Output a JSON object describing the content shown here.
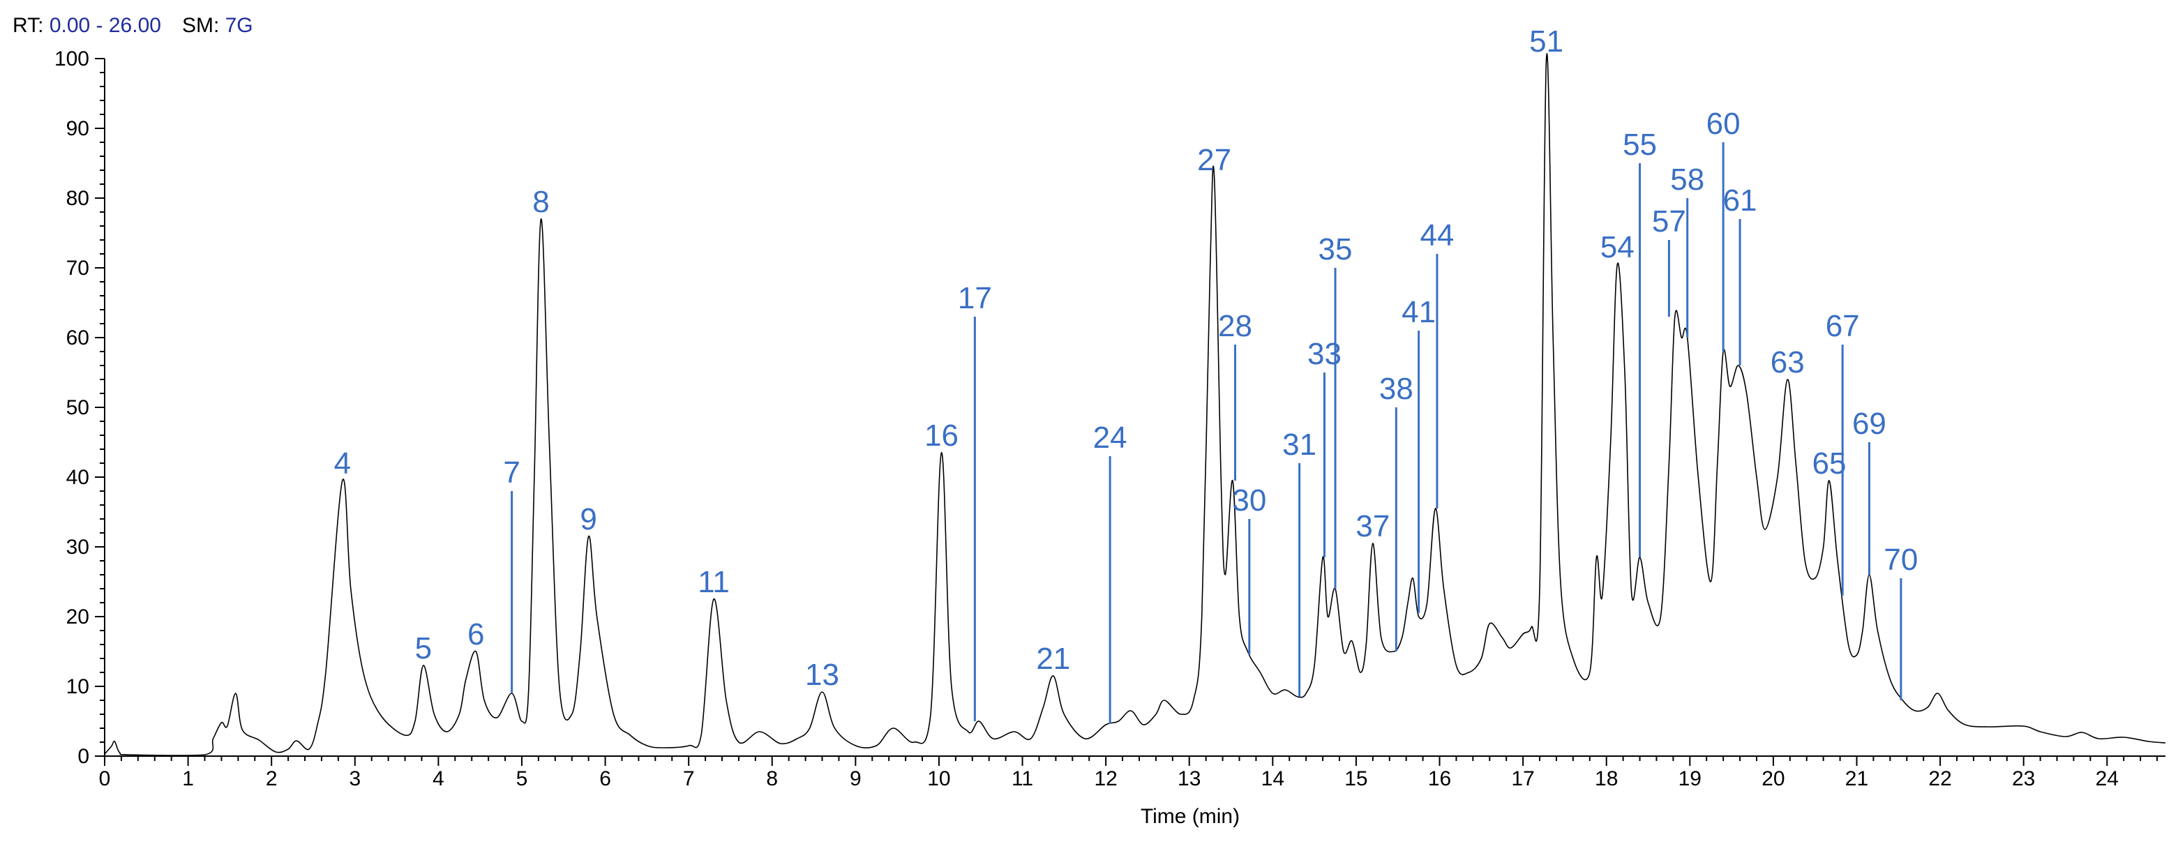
{
  "header": {
    "rt_label": "RT:",
    "rt_value": "0.00 - 26.00",
    "sm_label": "SM:",
    "sm_value": "7G"
  },
  "colors": {
    "trace": "#000000",
    "annotation": "#3a6fc4",
    "header_value": "#1f2d9c"
  },
  "chart_data": {
    "type": "line",
    "title": "",
    "xlabel": "Time (min)",
    "ylabel": "",
    "xlim": [
      0,
      24.7
    ],
    "ylim": [
      0,
      100
    ],
    "x_ticks": [
      0,
      1,
      2,
      3,
      4,
      5,
      6,
      7,
      8,
      9,
      10,
      11,
      12,
      13,
      14,
      15,
      16,
      17,
      18,
      19,
      20,
      21,
      22,
      23,
      24
    ],
    "y_ticks": [
      0,
      10,
      20,
      30,
      40,
      50,
      60,
      70,
      80,
      90,
      100
    ],
    "grid": false,
    "legend": "none",
    "baseline": [
      {
        "x": 0,
        "y": 0.3
      },
      {
        "x": 0.08,
        "y": 1.4
      },
      {
        "x": 0.12,
        "y": 2.1
      },
      {
        "x": 0.18,
        "y": 0.5
      },
      {
        "x": 0.3,
        "y": 0.2
      },
      {
        "x": 1.2,
        "y": 0.2
      },
      {
        "x": 1.3,
        "y": 2.5
      },
      {
        "x": 1.4,
        "y": 4.8
      },
      {
        "x": 1.47,
        "y": 4.3
      },
      {
        "x": 1.57,
        "y": 9.0
      },
      {
        "x": 1.65,
        "y": 3.8
      },
      {
        "x": 1.85,
        "y": 2.3
      },
      {
        "x": 2.05,
        "y": 0.6
      },
      {
        "x": 2.2,
        "y": 1.0
      },
      {
        "x": 2.3,
        "y": 2.2
      },
      {
        "x": 2.45,
        "y": 1.0
      },
      {
        "x": 2.55,
        "y": 4.5
      },
      {
        "x": 2.65,
        "y": 12
      },
      {
        "x": 2.85,
        "y": 39.5
      },
      {
        "x": 2.95,
        "y": 24
      },
      {
        "x": 3.1,
        "y": 12
      },
      {
        "x": 3.3,
        "y": 6
      },
      {
        "x": 3.6,
        "y": 3
      },
      {
        "x": 3.72,
        "y": 5
      },
      {
        "x": 3.82,
        "y": 13.0
      },
      {
        "x": 3.95,
        "y": 6
      },
      {
        "x": 4.1,
        "y": 3.5
      },
      {
        "x": 4.25,
        "y": 6
      },
      {
        "x": 4.33,
        "y": 11
      },
      {
        "x": 4.45,
        "y": 15.0
      },
      {
        "x": 4.55,
        "y": 8
      },
      {
        "x": 4.7,
        "y": 5.5
      },
      {
        "x": 4.88,
        "y": 9.0
      },
      {
        "x": 5.0,
        "y": 5
      },
      {
        "x": 5.08,
        "y": 9
      },
      {
        "x": 5.15,
        "y": 40
      },
      {
        "x": 5.23,
        "y": 77.0
      },
      {
        "x": 5.33,
        "y": 45
      },
      {
        "x": 5.45,
        "y": 10
      },
      {
        "x": 5.6,
        "y": 6
      },
      {
        "x": 5.7,
        "y": 15
      },
      {
        "x": 5.8,
        "y": 31.5
      },
      {
        "x": 5.9,
        "y": 20
      },
      {
        "x": 6.1,
        "y": 6
      },
      {
        "x": 6.3,
        "y": 3
      },
      {
        "x": 6.5,
        "y": 1.5
      },
      {
        "x": 6.7,
        "y": 1.2
      },
      {
        "x": 7.0,
        "y": 1.5
      },
      {
        "x": 7.15,
        "y": 3
      },
      {
        "x": 7.3,
        "y": 22.5
      },
      {
        "x": 7.45,
        "y": 8
      },
      {
        "x": 7.6,
        "y": 2
      },
      {
        "x": 7.85,
        "y": 3.5
      },
      {
        "x": 8.1,
        "y": 1.8
      },
      {
        "x": 8.3,
        "y": 2.5
      },
      {
        "x": 8.45,
        "y": 4
      },
      {
        "x": 8.6,
        "y": 9.2
      },
      {
        "x": 8.75,
        "y": 4
      },
      {
        "x": 9.0,
        "y": 1.5
      },
      {
        "x": 9.25,
        "y": 1.5
      },
      {
        "x": 9.45,
        "y": 4
      },
      {
        "x": 9.7,
        "y": 2
      },
      {
        "x": 9.9,
        "y": 6
      },
      {
        "x": 10.03,
        "y": 43.5
      },
      {
        "x": 10.15,
        "y": 10
      },
      {
        "x": 10.35,
        "y": 3.5
      },
      {
        "x": 10.48,
        "y": 5
      },
      {
        "x": 10.65,
        "y": 2.5
      },
      {
        "x": 10.9,
        "y": 3.5
      },
      {
        "x": 11.1,
        "y": 2.5
      },
      {
        "x": 11.25,
        "y": 7
      },
      {
        "x": 11.37,
        "y": 11.5
      },
      {
        "x": 11.5,
        "y": 6
      },
      {
        "x": 11.75,
        "y": 2.5
      },
      {
        "x": 12.0,
        "y": 4.5
      },
      {
        "x": 12.15,
        "y": 5
      },
      {
        "x": 12.3,
        "y": 6.5
      },
      {
        "x": 12.45,
        "y": 4.5
      },
      {
        "x": 12.6,
        "y": 6
      },
      {
        "x": 12.7,
        "y": 8
      },
      {
        "x": 12.9,
        "y": 6
      },
      {
        "x": 13.05,
        "y": 8
      },
      {
        "x": 13.15,
        "y": 20
      },
      {
        "x": 13.25,
        "y": 70
      },
      {
        "x": 13.3,
        "y": 83.0
      },
      {
        "x": 13.38,
        "y": 40
      },
      {
        "x": 13.43,
        "y": 26
      },
      {
        "x": 13.52,
        "y": 39.5
      },
      {
        "x": 13.6,
        "y": 20
      },
      {
        "x": 13.7,
        "y": 15
      },
      {
        "x": 13.85,
        "y": 12
      },
      {
        "x": 14.0,
        "y": 9
      },
      {
        "x": 14.15,
        "y": 9.5
      },
      {
        "x": 14.3,
        "y": 8.5
      },
      {
        "x": 14.4,
        "y": 9
      },
      {
        "x": 14.5,
        "y": 13
      },
      {
        "x": 14.6,
        "y": 28.5
      },
      {
        "x": 14.66,
        "y": 20
      },
      {
        "x": 14.75,
        "y": 24
      },
      {
        "x": 14.85,
        "y": 15
      },
      {
        "x": 14.95,
        "y": 16.5
      },
      {
        "x": 15.05,
        "y": 12
      },
      {
        "x": 15.12,
        "y": 16
      },
      {
        "x": 15.2,
        "y": 30.5
      },
      {
        "x": 15.3,
        "y": 17
      },
      {
        "x": 15.45,
        "y": 15
      },
      {
        "x": 15.55,
        "y": 17
      },
      {
        "x": 15.62,
        "y": 22
      },
      {
        "x": 15.68,
        "y": 25.5
      },
      {
        "x": 15.75,
        "y": 20
      },
      {
        "x": 15.85,
        "y": 22
      },
      {
        "x": 15.95,
        "y": 35.5
      },
      {
        "x": 16.05,
        "y": 24
      },
      {
        "x": 16.2,
        "y": 13
      },
      {
        "x": 16.35,
        "y": 12
      },
      {
        "x": 16.5,
        "y": 14
      },
      {
        "x": 16.6,
        "y": 19
      },
      {
        "x": 16.75,
        "y": 17
      },
      {
        "x": 16.85,
        "y": 15.5
      },
      {
        "x": 17.0,
        "y": 17.5
      },
      {
        "x": 17.1,
        "y": 18.5
      },
      {
        "x": 17.2,
        "y": 24
      },
      {
        "x": 17.28,
        "y": 100
      },
      {
        "x": 17.36,
        "y": 60
      },
      {
        "x": 17.45,
        "y": 25
      },
      {
        "x": 17.6,
        "y": 14
      },
      {
        "x": 17.8,
        "y": 12
      },
      {
        "x": 17.88,
        "y": 28.5
      },
      {
        "x": 17.95,
        "y": 23
      },
      {
        "x": 18.05,
        "y": 45
      },
      {
        "x": 18.13,
        "y": 70.5
      },
      {
        "x": 18.22,
        "y": 55
      },
      {
        "x": 18.3,
        "y": 23.5
      },
      {
        "x": 18.4,
        "y": 28.5
      },
      {
        "x": 18.5,
        "y": 22
      },
      {
        "x": 18.65,
        "y": 20
      },
      {
        "x": 18.75,
        "y": 42
      },
      {
        "x": 18.82,
        "y": 63
      },
      {
        "x": 18.9,
        "y": 60
      },
      {
        "x": 18.97,
        "y": 60
      },
      {
        "x": 19.1,
        "y": 40
      },
      {
        "x": 19.25,
        "y": 25
      },
      {
        "x": 19.33,
        "y": 42
      },
      {
        "x": 19.4,
        "y": 58
      },
      {
        "x": 19.48,
        "y": 53
      },
      {
        "x": 19.58,
        "y": 56
      },
      {
        "x": 19.68,
        "y": 52
      },
      {
        "x": 19.8,
        "y": 40
      },
      {
        "x": 19.9,
        "y": 32.5
      },
      {
        "x": 20.05,
        "y": 40
      },
      {
        "x": 20.17,
        "y": 54
      },
      {
        "x": 20.27,
        "y": 42
      },
      {
        "x": 20.38,
        "y": 28
      },
      {
        "x": 20.5,
        "y": 25.5
      },
      {
        "x": 20.6,
        "y": 30
      },
      {
        "x": 20.67,
        "y": 39.5
      },
      {
        "x": 20.77,
        "y": 28
      },
      {
        "x": 20.9,
        "y": 16
      },
      {
        "x": 21.0,
        "y": 14.5
      },
      {
        "x": 21.07,
        "y": 18
      },
      {
        "x": 21.15,
        "y": 26
      },
      {
        "x": 21.25,
        "y": 18
      },
      {
        "x": 21.4,
        "y": 11
      },
      {
        "x": 21.55,
        "y": 8
      },
      {
        "x": 21.7,
        "y": 6.5
      },
      {
        "x": 21.85,
        "y": 7
      },
      {
        "x": 21.97,
        "y": 9
      },
      {
        "x": 22.1,
        "y": 6.5
      },
      {
        "x": 22.3,
        "y": 4.5
      },
      {
        "x": 22.6,
        "y": 4.2
      },
      {
        "x": 23.0,
        "y": 4.3
      },
      {
        "x": 23.2,
        "y": 3.5
      },
      {
        "x": 23.5,
        "y": 2.8
      },
      {
        "x": 23.7,
        "y": 3.4
      },
      {
        "x": 23.9,
        "y": 2.5
      },
      {
        "x": 24.2,
        "y": 2.7
      },
      {
        "x": 24.5,
        "y": 2.1
      },
      {
        "x": 24.7,
        "y": 1.9
      }
    ],
    "annotations": [
      {
        "label": "4",
        "x": 2.85,
        "y": 39.5,
        "line": false
      },
      {
        "label": "5",
        "x": 3.82,
        "y": 13.0,
        "line": false
      },
      {
        "label": "6",
        "x": 4.45,
        "y": 15.0,
        "line": false
      },
      {
        "label": "7",
        "x": 4.88,
        "y": 9.0,
        "line": true,
        "top": 38
      },
      {
        "label": "8",
        "x": 5.23,
        "y": 77.0,
        "line": false
      },
      {
        "label": "9",
        "x": 5.8,
        "y": 31.5,
        "line": false
      },
      {
        "label": "11",
        "x": 7.3,
        "y": 22.5,
        "line": false
      },
      {
        "label": "13",
        "x": 8.6,
        "y": 9.2,
        "line": false
      },
      {
        "label": "16",
        "x": 10.03,
        "y": 43.5,
        "line": false
      },
      {
        "label": "17",
        "x": 10.43,
        "y": 5.0,
        "line": true,
        "top": 63
      },
      {
        "label": "21",
        "x": 11.37,
        "y": 11.5,
        "line": false
      },
      {
        "label": "24",
        "x": 12.05,
        "y": 4.6,
        "line": true,
        "top": 43
      },
      {
        "label": "27",
        "x": 13.3,
        "y": 83.0,
        "line": false
      },
      {
        "label": "28",
        "x": 13.55,
        "y": 39.5,
        "line": true,
        "top": 59
      },
      {
        "label": "30",
        "x": 13.72,
        "y": 14.5,
        "line": true,
        "top": 34
      },
      {
        "label": "31",
        "x": 14.32,
        "y": 8.5,
        "line": true,
        "top": 42
      },
      {
        "label": "33",
        "x": 14.62,
        "y": 28.5,
        "line": true,
        "top": 55
      },
      {
        "label": "35",
        "x": 14.75,
        "y": 24.0,
        "line": true,
        "top": 70
      },
      {
        "label": "37",
        "x": 15.2,
        "y": 30.5,
        "line": false
      },
      {
        "label": "38",
        "x": 15.48,
        "y": 15.0,
        "line": true,
        "top": 50
      },
      {
        "label": "41",
        "x": 15.75,
        "y": 20.5,
        "line": true,
        "top": 61
      },
      {
        "label": "44",
        "x": 15.97,
        "y": 35.5,
        "line": true,
        "top": 72
      },
      {
        "label": "51",
        "x": 17.28,
        "y": 100,
        "line": false
      },
      {
        "label": "54",
        "x": 18.13,
        "y": 70.5,
        "line": false
      },
      {
        "label": "55",
        "x": 18.4,
        "y": 28.5,
        "line": true,
        "top": 85
      },
      {
        "label": "57",
        "x": 18.75,
        "y": 63.0,
        "line": true,
        "top": 74
      },
      {
        "label": "58",
        "x": 18.97,
        "y": 60.0,
        "line": true,
        "top": 80
      },
      {
        "label": "60",
        "x": 19.4,
        "y": 58.0,
        "line": true,
        "top": 88
      },
      {
        "label": "61",
        "x": 19.6,
        "y": 56.0,
        "line": true,
        "top": 77
      },
      {
        "label": "63",
        "x": 20.17,
        "y": 54.0,
        "line": false
      },
      {
        "label": "65",
        "x": 20.67,
        "y": 39.5,
        "line": false
      },
      {
        "label": "67",
        "x": 20.83,
        "y": 23.0,
        "line": true,
        "top": 59
      },
      {
        "label": "69",
        "x": 21.15,
        "y": 26.0,
        "line": true,
        "top": 45
      },
      {
        "label": "70",
        "x": 21.53,
        "y": 8.0,
        "line": true,
        "top": 25.5
      }
    ]
  }
}
